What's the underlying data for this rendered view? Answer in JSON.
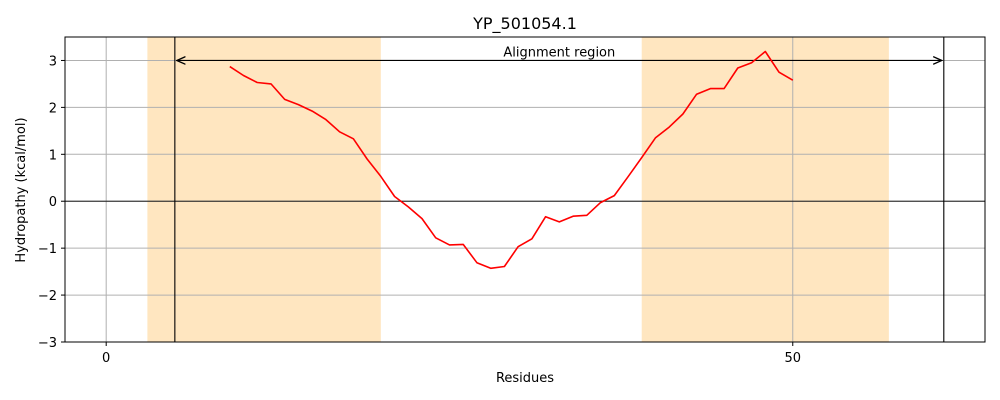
{
  "chart_data": {
    "type": "line",
    "title": "YP_501054.1",
    "xlabel": "Residues",
    "ylabel": "Hydropathy (kcal/mol)",
    "xlim": [
      -3,
      64
    ],
    "ylim": [
      -3,
      3.5
    ],
    "xticks": [
      0,
      50
    ],
    "yticks": [
      -3,
      -2,
      -1,
      0,
      1,
      2,
      3
    ],
    "grid": true,
    "colors": {
      "line": "#ff0000",
      "shade": "#ffe6c0",
      "grid": "#b0b0b0",
      "zero": "#000000"
    },
    "shaded_regions": [
      [
        3,
        20
      ],
      [
        39,
        57
      ]
    ],
    "vertical_lines": [
      5,
      61
    ],
    "alignment": {
      "label": "Alignment region",
      "x_start": 5,
      "x_end": 61,
      "y": 3
    },
    "series": [
      {
        "x": [
          9,
          10,
          11,
          12,
          13,
          14,
          15,
          16,
          17,
          18,
          19,
          20,
          21,
          22,
          23,
          24,
          25,
          26,
          27,
          28,
          29,
          30,
          31,
          32,
          33,
          34,
          35,
          36,
          37,
          38,
          39,
          40,
          41,
          42,
          43,
          44,
          45,
          46,
          47,
          48,
          49,
          50
        ],
        "y": [
          2.87,
          2.68,
          2.53,
          2.5,
          2.17,
          2.06,
          1.92,
          1.74,
          1.48,
          1.33,
          0.9,
          0.53,
          0.1,
          -0.12,
          -0.37,
          -0.78,
          -0.93,
          -0.92,
          -1.31,
          -1.43,
          -1.39,
          -0.97,
          -0.8,
          -0.33,
          -0.44,
          -0.32,
          -0.3,
          -0.03,
          0.12,
          0.52,
          0.93,
          1.35,
          1.58,
          1.86,
          2.28,
          2.4,
          2.4,
          2.84,
          2.95,
          3.19,
          2.75,
          2.58
        ]
      }
    ]
  }
}
